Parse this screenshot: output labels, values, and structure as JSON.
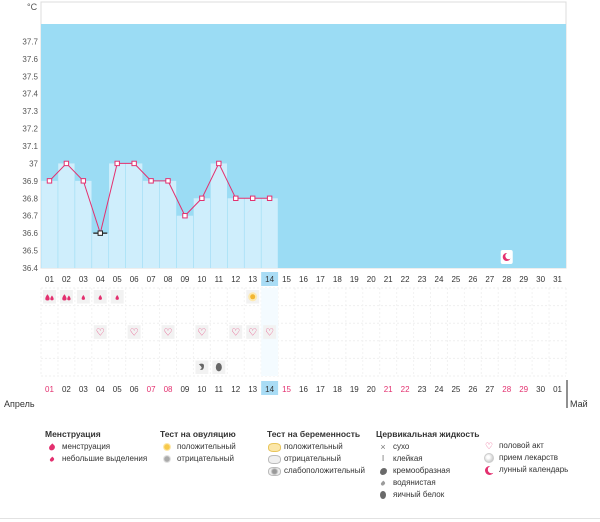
{
  "chart_data": {
    "type": "bar",
    "ylabel": "°C",
    "ylim": [
      36.4,
      37.8
    ],
    "yticks": [
      "37.7",
      "37.6",
      "37.5",
      "37.4",
      "37.3",
      "37.2",
      "37.1",
      "37",
      "36.9",
      "36.8",
      "36.7",
      "36.6",
      "36.5",
      "36.4"
    ],
    "days": [
      "01",
      "02",
      "03",
      "04",
      "05",
      "06",
      "07",
      "08",
      "09",
      "10",
      "11",
      "12",
      "13",
      "14",
      "15",
      "16",
      "17",
      "18",
      "19",
      "20",
      "21",
      "22",
      "23",
      "24",
      "25",
      "26",
      "27",
      "28",
      "29",
      "30",
      "31"
    ],
    "temperatures": [
      36.9,
      37.0,
      36.9,
      36.6,
      37.0,
      37.0,
      36.9,
      36.9,
      36.7,
      36.8,
      37.0,
      36.8,
      36.8,
      36.8
    ],
    "highlighted_point": "04",
    "current_day": "14",
    "lunar_day": "28",
    "bottom_days": [
      {
        "d": "01",
        "red": true
      },
      {
        "d": "02",
        "red": false
      },
      {
        "d": "03",
        "red": false
      },
      {
        "d": "04",
        "red": false
      },
      {
        "d": "05",
        "red": false
      },
      {
        "d": "06",
        "red": false
      },
      {
        "d": "07",
        "red": true
      },
      {
        "d": "08",
        "red": true
      },
      {
        "d": "09",
        "red": false
      },
      {
        "d": "10",
        "red": false
      },
      {
        "d": "11",
        "red": false
      },
      {
        "d": "12",
        "red": false
      },
      {
        "d": "13",
        "red": false
      },
      {
        "d": "14",
        "red": false,
        "current": true
      },
      {
        "d": "15",
        "red": true
      },
      {
        "d": "16",
        "red": false
      },
      {
        "d": "17",
        "red": false
      },
      {
        "d": "18",
        "red": false
      },
      {
        "d": "19",
        "red": false
      },
      {
        "d": "20",
        "red": false
      },
      {
        "d": "21",
        "red": true
      },
      {
        "d": "22",
        "red": true
      },
      {
        "d": "23",
        "red": false
      },
      {
        "d": "24",
        "red": false
      },
      {
        "d": "25",
        "red": false
      },
      {
        "d": "26",
        "red": false
      },
      {
        "d": "27",
        "red": false
      },
      {
        "d": "28",
        "red": true
      },
      {
        "d": "29",
        "red": true
      },
      {
        "d": "30",
        "red": false
      },
      {
        "d": "01",
        "red": false
      }
    ],
    "months": {
      "start": "Апрель",
      "end": "Май"
    },
    "symbols": {
      "menstruation": {
        "01": "large",
        "02": "large",
        "03": "small",
        "04": "small",
        "05": "small"
      },
      "ovulation_test": {
        "13": "positive"
      },
      "intercourse": [
        "04",
        "06",
        "08",
        "10",
        "12",
        "13",
        "14"
      ],
      "cervical": {
        "10": "creamy",
        "11": "egg_white"
      }
    },
    "colors": {
      "accent": "#e3306f",
      "bar": "#cfeefc",
      "bg": "#9bdcf4",
      "current": "#a9dcf5"
    }
  },
  "legend": {
    "menstruation": {
      "title": "Менструация",
      "items": [
        "менструация",
        "небольшие выделения"
      ]
    },
    "ovulation": {
      "title": "Тест на овуляцию",
      "items": [
        "положительный",
        "отрицательный"
      ]
    },
    "pregnancy": {
      "title": "Тест на беременность",
      "items": [
        "положительный",
        "отрицательный",
        "слабоположительный"
      ]
    },
    "cervical": {
      "title": "Цервикальная жидкость",
      "items": [
        "сухо",
        "клейкая",
        "кремообразная",
        "водянистая",
        "яичный белок"
      ]
    },
    "other": {
      "items": [
        "половой акт",
        "прием лекарств",
        "лунный календарь"
      ]
    },
    "icons": {
      "dry": "×",
      "sticky": "Ⅰ",
      "heart": "♡"
    }
  }
}
